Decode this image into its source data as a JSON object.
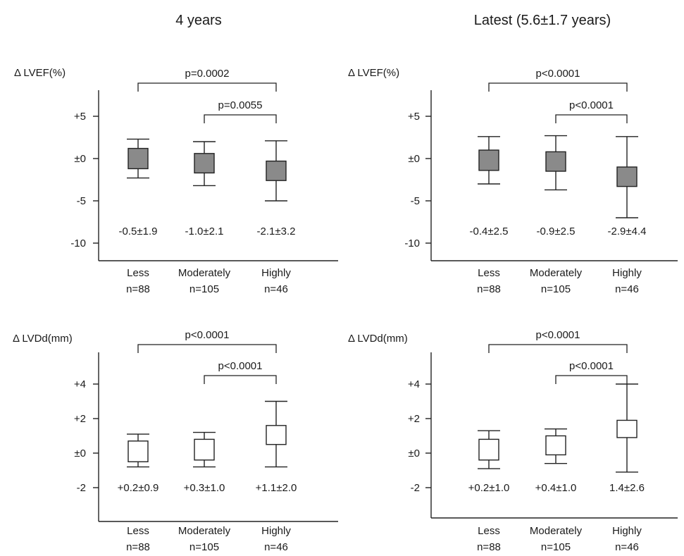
{
  "colors": {
    "box_filled": "#8a8a8a",
    "box_open": "#ffffff",
    "line": "#222222"
  },
  "chart_data": [
    {
      "type": "box",
      "column_title": "4 years",
      "ylabel": "Δ LVEF(%)",
      "ylim": [
        -12,
        8
      ],
      "yticks": [
        5,
        0,
        -5,
        -10
      ],
      "ytick_labels": [
        "+5",
        "±0",
        "-5",
        "-10"
      ],
      "box_fill": "filled",
      "categories": [
        "Less",
        "Moderately",
        "Highly"
      ],
      "n_labels": [
        "n=88",
        "n=105",
        "n=46"
      ],
      "stat_labels": [
        "-0.5±1.9",
        "-1.0±2.1",
        "-2.1±3.2"
      ],
      "boxes": [
        {
          "box": [
            -1.2,
            1.2
          ],
          "whisker": [
            -2.3,
            2.3
          ]
        },
        {
          "box": [
            -1.7,
            0.6
          ],
          "whisker": [
            -3.2,
            2.0
          ]
        },
        {
          "box": [
            -2.6,
            -0.3
          ],
          "whisker": [
            -5.0,
            2.1
          ]
        }
      ],
      "comparisons": [
        {
          "from": 0,
          "to": 2,
          "label": "p=0.0002"
        },
        {
          "from": 1,
          "to": 2,
          "label": "p=0.0055"
        }
      ]
    },
    {
      "type": "box",
      "column_title": "Latest (5.6±1.7 years)",
      "ylabel": "Δ LVEF(%)",
      "ylim": [
        -12,
        8
      ],
      "yticks": [
        5,
        0,
        -5,
        -10
      ],
      "ytick_labels": [
        "+5",
        "±0",
        "-5",
        "-10"
      ],
      "box_fill": "filled",
      "categories": [
        "Less",
        "Moderately",
        "Highly"
      ],
      "n_labels": [
        "n=88",
        "n=105",
        "n=46"
      ],
      "stat_labels": [
        "-0.4±2.5",
        "-0.9±2.5",
        "-2.9±4.4"
      ],
      "boxes": [
        {
          "box": [
            -1.4,
            1.0
          ],
          "whisker": [
            -3.0,
            2.6
          ]
        },
        {
          "box": [
            -1.5,
            0.8
          ],
          "whisker": [
            -3.7,
            2.7
          ]
        },
        {
          "box": [
            -3.3,
            -1.0
          ],
          "whisker": [
            -7.0,
            2.6
          ]
        }
      ],
      "comparisons": [
        {
          "from": 0,
          "to": 2,
          "label": "p<0.0001"
        },
        {
          "from": 1,
          "to": 2,
          "label": "p<0.0001"
        }
      ]
    },
    {
      "type": "box",
      "column_title": "",
      "ylabel": "Δ LVDd(mm)",
      "ylim": [
        -3,
        6
      ],
      "yticks": [
        4,
        2,
        0,
        -2
      ],
      "ytick_labels": [
        "+4",
        "+2",
        "±0",
        "-2"
      ],
      "box_fill": "open",
      "categories": [
        "Less",
        "Moderately",
        "Highly"
      ],
      "n_labels": [
        "n=88",
        "n=105",
        "n=46"
      ],
      "stat_labels": [
        "+0.2±0.9",
        "+0.3±1.0",
        "+1.1±2.0"
      ],
      "boxes": [
        {
          "box": [
            -0.5,
            0.7
          ],
          "whisker": [
            -0.8,
            1.1
          ]
        },
        {
          "box": [
            -0.4,
            0.8
          ],
          "whisker": [
            -0.8,
            1.2
          ]
        },
        {
          "box": [
            0.5,
            1.6
          ],
          "whisker": [
            -0.8,
            3.0
          ]
        }
      ],
      "comparisons": [
        {
          "from": 0,
          "to": 2,
          "label": "p<0.0001"
        },
        {
          "from": 1,
          "to": 2,
          "label": "p<0.0001"
        }
      ]
    },
    {
      "type": "box",
      "column_title": "",
      "ylabel": "Δ LVDd(mm)",
      "ylim": [
        -3,
        6
      ],
      "yticks": [
        4,
        2,
        0,
        -2
      ],
      "ytick_labels": [
        "+4",
        "+2",
        "±0",
        "-2"
      ],
      "box_fill": "open",
      "categories": [
        "Less",
        "Moderately",
        "Highly"
      ],
      "n_labels": [
        "n=88",
        "n=105",
        "n=46"
      ],
      "stat_labels": [
        "+0.2±1.0",
        "+0.4±1.0",
        "1.4±2.6"
      ],
      "boxes": [
        {
          "box": [
            -0.4,
            0.8
          ],
          "whisker": [
            -0.9,
            1.3
          ]
        },
        {
          "box": [
            -0.1,
            1.0
          ],
          "whisker": [
            -0.6,
            1.4
          ]
        },
        {
          "box": [
            0.9,
            1.9
          ],
          "whisker": [
            -1.1,
            4.0
          ]
        }
      ],
      "comparisons": [
        {
          "from": 0,
          "to": 2,
          "label": "p<0.0001"
        },
        {
          "from": 1,
          "to": 2,
          "label": "p<0.0001"
        }
      ]
    }
  ]
}
